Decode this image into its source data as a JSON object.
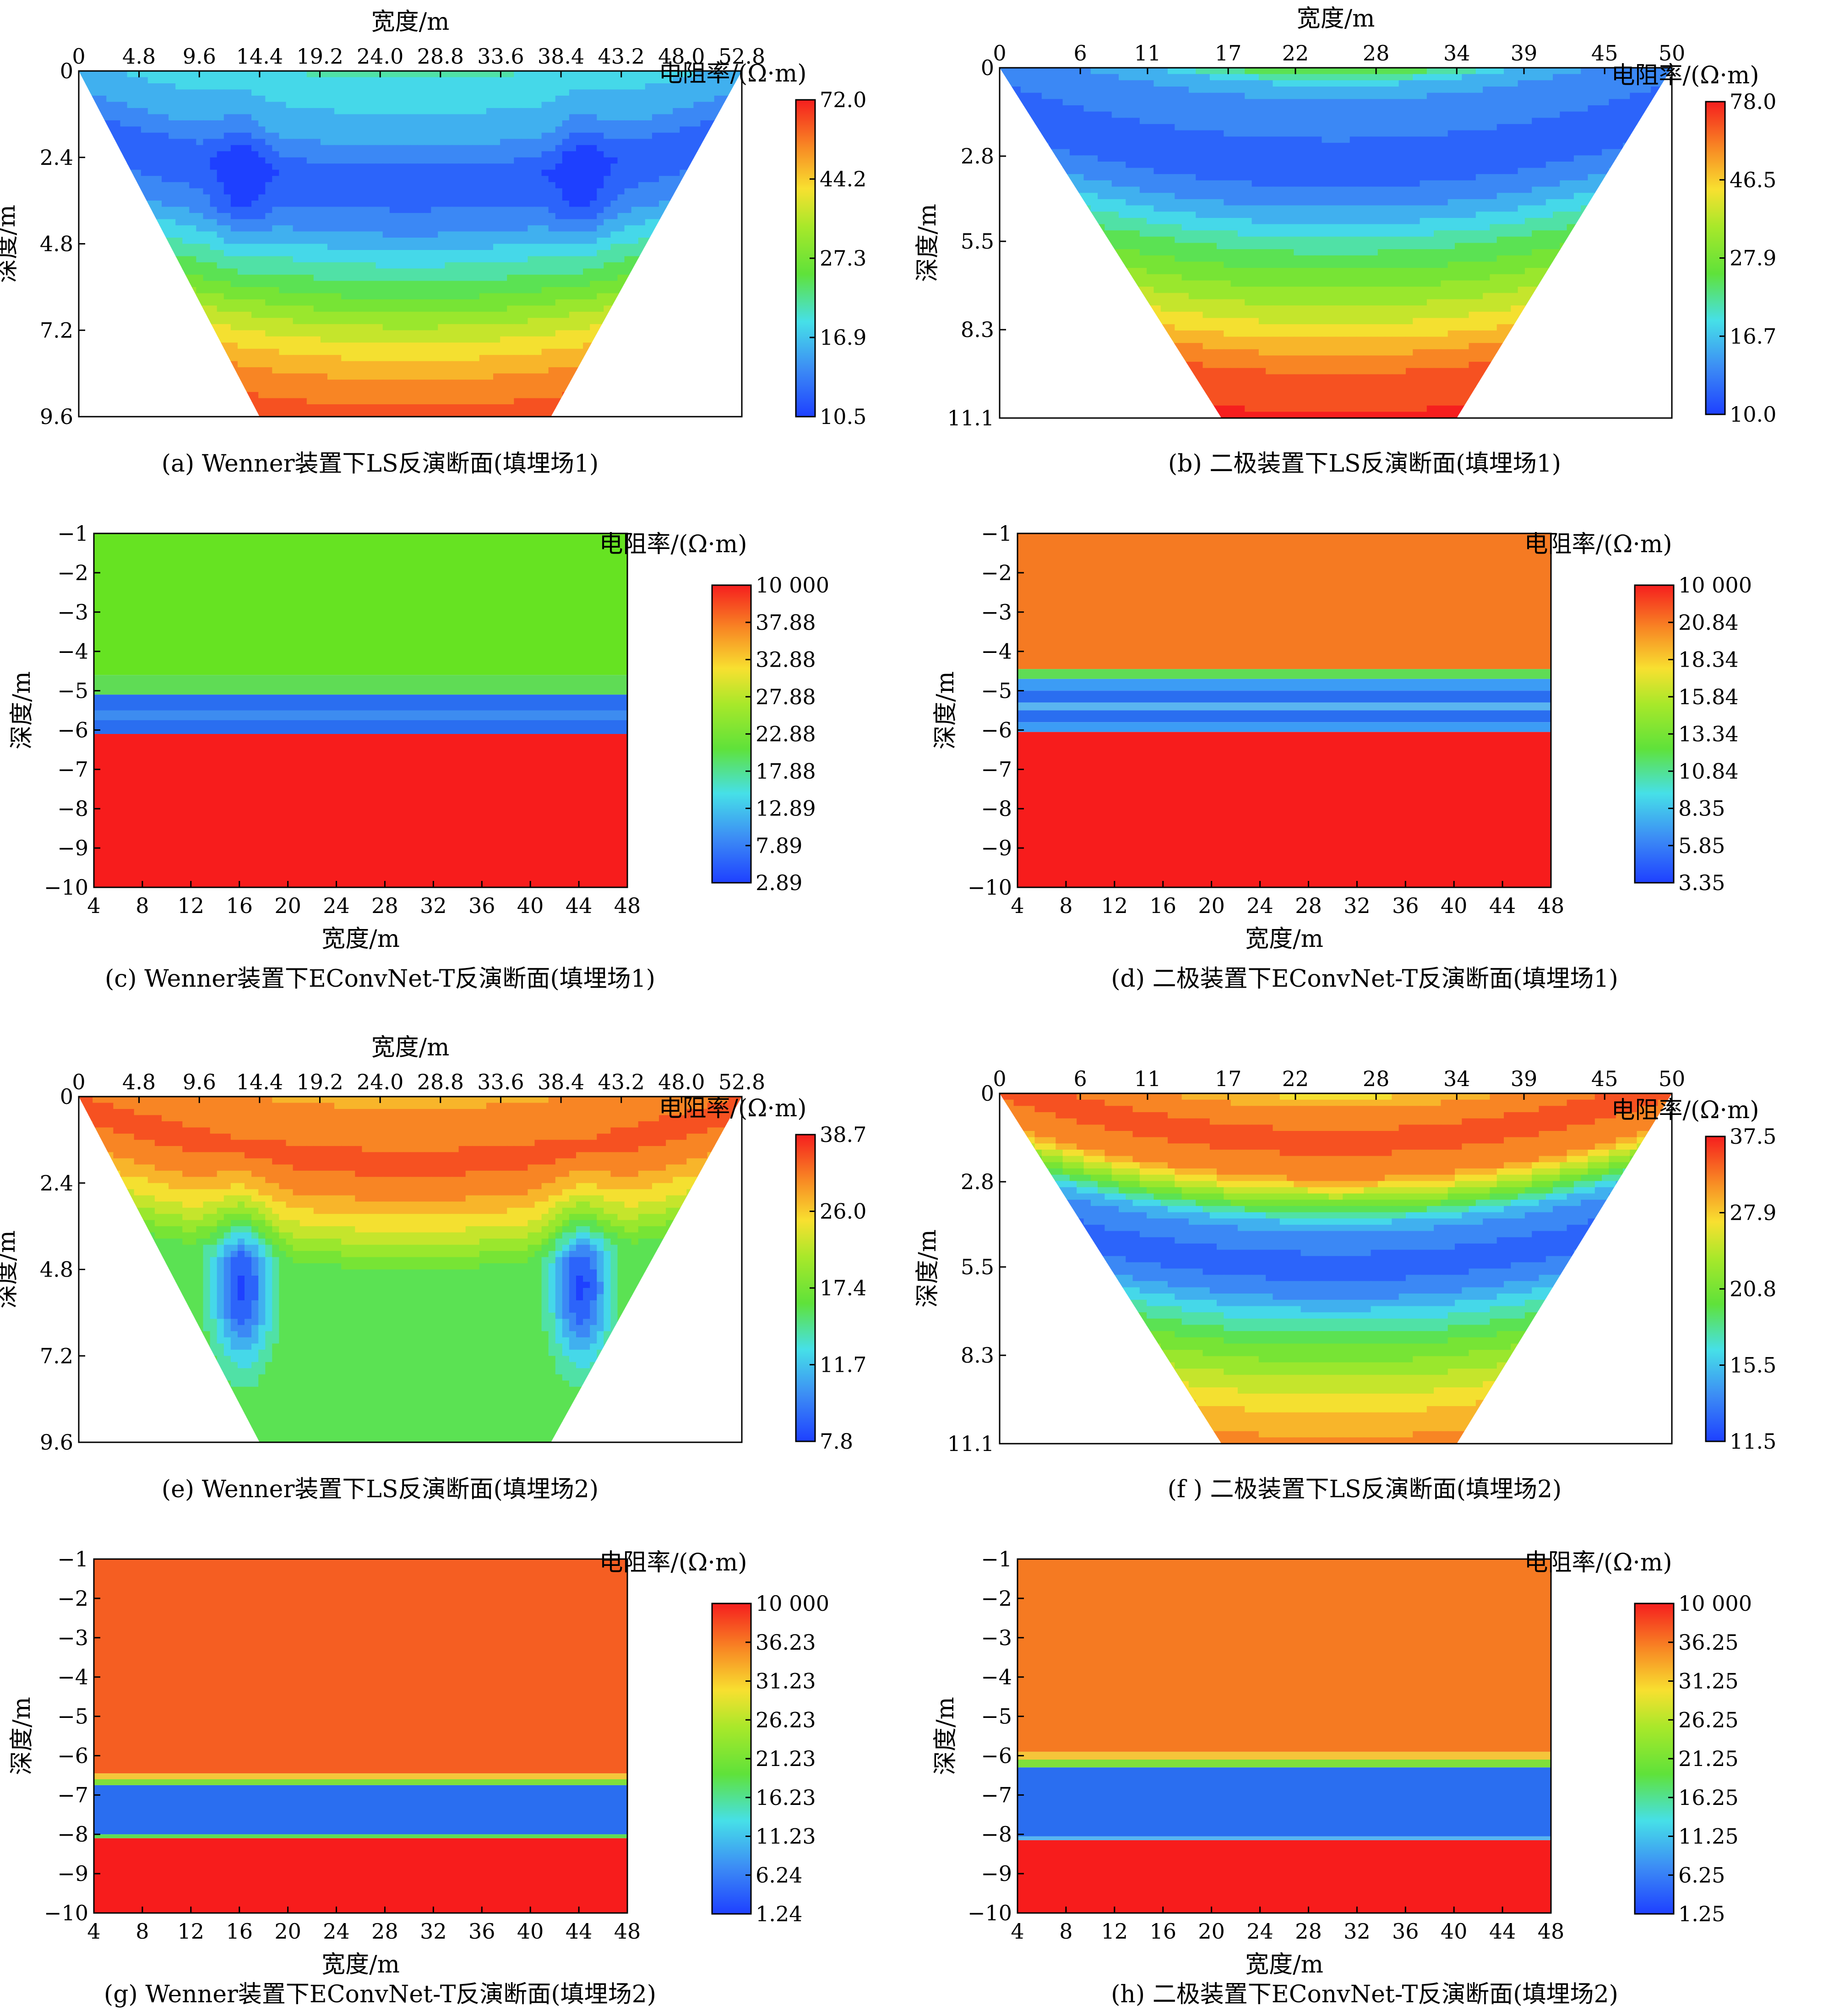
{
  "chart_data": [
    {
      "id": "a",
      "type": "heatmap",
      "style": "ls",
      "caption": "(a)  Wenner装置下LS反演断面(填埋场1)",
      "xlabel": "宽度/m",
      "ylabel": "深度/m",
      "xticks": [
        "0",
        "4.8",
        "9.6",
        "14.4",
        "19.2",
        "24.0",
        "28.8",
        "33.6",
        "38.4",
        "43.2",
        "48.0",
        "52.8"
      ],
      "yticks": [
        "0",
        "2.4",
        "4.8",
        "7.2",
        "9.6"
      ],
      "xlim": [
        0,
        52.8
      ],
      "ylim": [
        0,
        9.6
      ],
      "trapezoid_top": [
        0,
        52.8
      ],
      "trapezoid_bottom": [
        14.4,
        37.6
      ],
      "colorbar_title": "电阻率/(Ω·m)",
      "colorbar_ticks": [
        "72.0",
        "44.2",
        "27.3",
        "16.9",
        "10.5"
      ],
      "profile": [
        [
          0,
          0.34
        ],
        [
          0.08,
          0.28
        ],
        [
          0.2,
          0.2
        ],
        [
          0.32,
          0.05
        ],
        [
          0.45,
          0.14
        ],
        [
          0.55,
          0.3
        ],
        [
          0.65,
          0.45
        ],
        [
          0.75,
          0.62
        ],
        [
          0.87,
          0.8
        ],
        [
          1,
          0.92
        ]
      ],
      "bumps": [
        {
          "x": 13,
          "y": 3.0,
          "r": 2.0,
          "d": -0.12
        },
        {
          "x": 40,
          "y": 3.0,
          "r": 2.0,
          "d": -0.12
        }
      ]
    },
    {
      "id": "b",
      "type": "heatmap",
      "style": "ls",
      "caption": "(b)  二极装置下LS反演断面(填埋场1)",
      "xlabel": "宽度/m",
      "ylabel": "深度/m",
      "xticks": [
        "0",
        "6",
        "11",
        "17",
        "22",
        "28",
        "34",
        "39",
        "45",
        "50"
      ],
      "yticks": [
        "0",
        "2.8",
        "5.5",
        "8.3",
        "11.1"
      ],
      "xlim": [
        0,
        50
      ],
      "ylim": [
        0,
        11.1
      ],
      "trapezoid_top": [
        0,
        50
      ],
      "trapezoid_bottom": [
        16.5,
        34
      ],
      "colorbar_title": "电阻率/(Ω·m)",
      "colorbar_ticks": [
        "78.0",
        "46.5",
        "27.9",
        "16.7",
        "10.0"
      ],
      "profile": [
        [
          0,
          0.5
        ],
        [
          0.06,
          0.2
        ],
        [
          0.18,
          0.12
        ],
        [
          0.3,
          0.06
        ],
        [
          0.42,
          0.2
        ],
        [
          0.52,
          0.38
        ],
        [
          0.62,
          0.52
        ],
        [
          0.72,
          0.66
        ],
        [
          0.82,
          0.82
        ],
        [
          0.9,
          0.93
        ],
        [
          1,
          0.97
        ]
      ],
      "bumps": []
    },
    {
      "id": "c",
      "type": "heatmap",
      "style": "layers",
      "caption": "(c)  Wenner装置下EConvNet-T反演断面(填埋场1)",
      "xlabel": "宽度/m",
      "ylabel": "深度/m",
      "xticks": [
        "4",
        "8",
        "12",
        "16",
        "20",
        "24",
        "28",
        "32",
        "36",
        "40",
        "44",
        "48"
      ],
      "yticks": [
        "−1",
        "−2",
        "−3",
        "−4",
        "−5",
        "−6",
        "−7",
        "−8",
        "−9",
        "−10"
      ],
      "xlim": [
        4,
        48
      ],
      "ylim": [
        -1,
        -10
      ],
      "colorbar_title": "电阻率/(Ω·m)",
      "colorbar_ticks": [
        "10 000",
        "37.88",
        "32.88",
        "27.88",
        "22.88",
        "17.88",
        "12.89",
        "7.89",
        "2.89"
      ],
      "layers": [
        {
          "from": -1,
          "to": -4.6,
          "color": "#66e322"
        },
        {
          "from": -4.6,
          "to": -5.1,
          "color": "#5fdc55"
        },
        {
          "from": -5.1,
          "to": -5.5,
          "color": "#2a6ef0"
        },
        {
          "from": -5.5,
          "to": -5.75,
          "color": "#3d8cf0"
        },
        {
          "from": -5.75,
          "to": -6.1,
          "color": "#2a6ef0"
        },
        {
          "from": -6.1,
          "to": -10,
          "color": "#f71c1c"
        }
      ]
    },
    {
      "id": "d",
      "type": "heatmap",
      "style": "layers",
      "caption": "(d)  二极装置下EConvNet-T反演断面(填埋场1)",
      "xlabel": "宽度/m",
      "ylabel": "深度/m",
      "xticks": [
        "4",
        "8",
        "12",
        "16",
        "20",
        "24",
        "28",
        "32",
        "36",
        "40",
        "44",
        "48"
      ],
      "yticks": [
        "−1",
        "−2",
        "−3",
        "−4",
        "−5",
        "−6",
        "−7",
        "−8",
        "−9",
        "−10"
      ],
      "xlim": [
        4,
        48
      ],
      "ylim": [
        -1,
        -10
      ],
      "colorbar_title": "电阻率/(Ω·m)",
      "colorbar_ticks": [
        "10 000",
        "20.84",
        "18.34",
        "15.84",
        "13.34",
        "10.84",
        "8.35",
        "5.85",
        "3.35"
      ],
      "layers": [
        {
          "from": -1,
          "to": -4.45,
          "color": "#f57a22"
        },
        {
          "from": -4.45,
          "to": -4.7,
          "color": "#5fdc55"
        },
        {
          "from": -4.7,
          "to": -5.0,
          "color": "#3c9cf5"
        },
        {
          "from": -5.0,
          "to": -5.3,
          "color": "#2a6ef0"
        },
        {
          "from": -5.3,
          "to": -5.5,
          "color": "#5ab5f0"
        },
        {
          "from": -5.5,
          "to": -5.8,
          "color": "#2a6ef0"
        },
        {
          "from": -5.8,
          "to": -6.05,
          "color": "#3c9cf5"
        },
        {
          "from": -6.05,
          "to": -10,
          "color": "#f71c1c"
        }
      ]
    },
    {
      "id": "e",
      "type": "heatmap",
      "style": "ls",
      "caption": "(e)  Wenner装置下LS反演断面(填埋场2)",
      "xlabel": "宽度/m",
      "ylabel": "深度/m",
      "xticks": [
        "0",
        "4.8",
        "9.6",
        "14.4",
        "19.2",
        "24.0",
        "28.8",
        "33.6",
        "38.4",
        "43.2",
        "48.0",
        "52.8"
      ],
      "yticks": [
        "0",
        "2.4",
        "4.8",
        "7.2",
        "9.6"
      ],
      "xlim": [
        0,
        52.8
      ],
      "ylim": [
        0,
        9.6
      ],
      "trapezoid_top": [
        0,
        52.8
      ],
      "trapezoid_bottom": [
        14.4,
        37.6
      ],
      "colorbar_title": "电阻率/(Ω·m)",
      "colorbar_ticks": [
        "38.7",
        "26.0",
        "17.4",
        "11.7",
        "7.8"
      ],
      "profile": [
        [
          0,
          0.8
        ],
        [
          0.1,
          0.86
        ],
        [
          0.2,
          0.92
        ],
        [
          0.3,
          0.82
        ],
        [
          0.4,
          0.66
        ],
        [
          0.5,
          0.46
        ],
        [
          0.6,
          0.46
        ],
        [
          0.75,
          0.46
        ],
        [
          1,
          0.46
        ]
      ],
      "bumps": [
        {
          "x": 13,
          "y": 5.3,
          "r": 2.3,
          "d": -0.44
        },
        {
          "x": 40,
          "y": 5.3,
          "r": 2.3,
          "d": -0.44
        }
      ]
    },
    {
      "id": "f",
      "type": "heatmap",
      "style": "ls",
      "caption": "(f )  二极装置下LS反演断面(填埋场2)",
      "xlabel": "",
      "ylabel": "深度/m",
      "xticks": [
        "0",
        "6",
        "11",
        "17",
        "22",
        "28",
        "34",
        "39",
        "45",
        "50"
      ],
      "yticks": [
        "0",
        "2.8",
        "5.5",
        "8.3",
        "11.1"
      ],
      "xlim": [
        0,
        50
      ],
      "ylim": [
        0,
        11.1
      ],
      "trapezoid_top": [
        0,
        50
      ],
      "trapezoid_bottom": [
        16.5,
        34
      ],
      "colorbar_title": "电阻率/(Ω·m)",
      "colorbar_ticks": [
        "37.5",
        "27.9",
        "20.8",
        "15.5",
        "11.5"
      ],
      "profile": [
        [
          0,
          0.72
        ],
        [
          0.06,
          0.86
        ],
        [
          0.14,
          0.92
        ],
        [
          0.24,
          0.84
        ],
        [
          0.32,
          0.5
        ],
        [
          0.38,
          0.2
        ],
        [
          0.48,
          0.08
        ],
        [
          0.56,
          0.12
        ],
        [
          0.64,
          0.3
        ],
        [
          0.72,
          0.46
        ],
        [
          0.82,
          0.62
        ],
        [
          0.92,
          0.76
        ],
        [
          1,
          0.84
        ]
      ],
      "bumps": []
    },
    {
      "id": "g",
      "type": "heatmap",
      "style": "layers",
      "caption": "(g)  Wenner装置下EConvNet-T反演断面(填埋场2)",
      "xlabel": "宽度/m",
      "ylabel": "深度/m",
      "xticks": [
        "4",
        "8",
        "12",
        "16",
        "20",
        "24",
        "28",
        "32",
        "36",
        "40",
        "44",
        "48"
      ],
      "yticks": [
        "−1",
        "−2",
        "−3",
        "−4",
        "−5",
        "−6",
        "−7",
        "−8",
        "−9",
        "−10"
      ],
      "xlim": [
        4,
        48
      ],
      "ylim": [
        -1,
        -10
      ],
      "colorbar_title": "电阻率/(Ω·m)",
      "colorbar_ticks": [
        "10 000",
        "36.23",
        "31.23",
        "26.23",
        "21.23",
        "16.23",
        "11.23",
        "6.24",
        "1.24"
      ],
      "layers": [
        {
          "from": -1,
          "to": -6.45,
          "color": "#f55e22"
        },
        {
          "from": -6.45,
          "to": -6.6,
          "color": "#f5c53a"
        },
        {
          "from": -6.6,
          "to": -6.75,
          "color": "#7fe03a"
        },
        {
          "from": -6.75,
          "to": -8.0,
          "color": "#2a6ef0"
        },
        {
          "from": -8.0,
          "to": -8.1,
          "color": "#5fdc55"
        },
        {
          "from": -8.1,
          "to": -10,
          "color": "#f71c1c"
        }
      ]
    },
    {
      "id": "h",
      "type": "heatmap",
      "style": "layers",
      "caption": "(h)  二极装置下EConvNet-T反演断面(填埋场2)",
      "xlabel": "宽度/m",
      "ylabel": "深度/m",
      "xticks": [
        "4",
        "8",
        "12",
        "16",
        "20",
        "24",
        "28",
        "32",
        "36",
        "40",
        "44",
        "48"
      ],
      "yticks": [
        "−1",
        "−2",
        "−3",
        "−4",
        "−5",
        "−6",
        "−7",
        "−8",
        "−9",
        "−10"
      ],
      "xlim": [
        4,
        48
      ],
      "ylim": [
        -1,
        -10
      ],
      "colorbar_title": "电阻率/(Ω·m)",
      "colorbar_ticks": [
        "10 000",
        "36.25",
        "31.25",
        "26.25",
        "21.25",
        "16.25",
        "11.25",
        "6.25",
        "1.25"
      ],
      "layers": [
        {
          "from": -1,
          "to": -5.9,
          "color": "#f57a22"
        },
        {
          "from": -5.9,
          "to": -6.1,
          "color": "#f5c53a"
        },
        {
          "from": -6.1,
          "to": -6.3,
          "color": "#7fe03a"
        },
        {
          "from": -6.3,
          "to": -8.05,
          "color": "#2a6ef0"
        },
        {
          "from": -8.05,
          "to": -8.15,
          "color": "#5ab5f0"
        },
        {
          "from": -8.15,
          "to": -10,
          "color": "#f71c1c"
        }
      ]
    }
  ]
}
